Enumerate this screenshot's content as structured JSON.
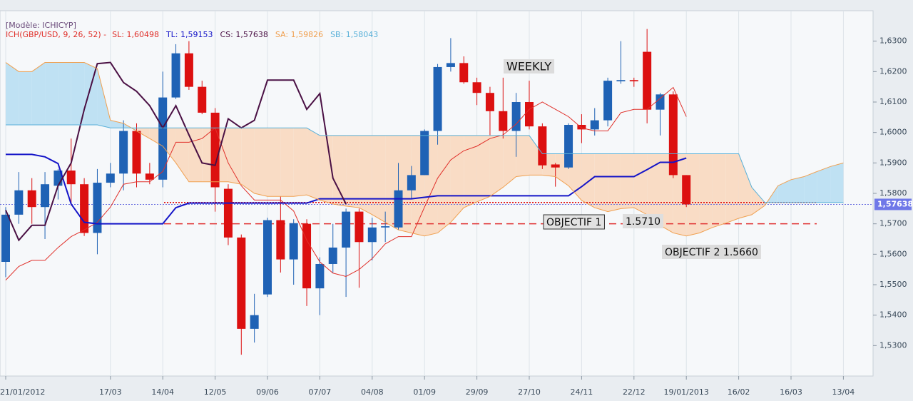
{
  "chart_data": {
    "type": "candlestick",
    "model": "[Modèle: ICHICYP]",
    "indicator": "ICH(GBP/USD, 9, 26, 52) -",
    "categories": [
      "21/01/2012",
      null,
      null,
      null,
      null,
      null,
      null,
      null,
      "17/03",
      null,
      null,
      null,
      "14/04",
      null,
      null,
      null,
      "12/05",
      null,
      null,
      null,
      "09/06",
      null,
      null,
      null,
      "07/07",
      null,
      null,
      null,
      "04/08",
      null,
      null,
      null,
      "01/09",
      null,
      null,
      null,
      "29/09",
      null,
      null,
      null,
      "27/10",
      null,
      null,
      null,
      "24/11",
      null,
      null,
      null,
      "22/12",
      null,
      null,
      null,
      "19/01/2013",
      null,
      null,
      null,
      "16/02",
      null,
      null,
      null,
      "16/03",
      null,
      null,
      null,
      "13/04"
    ],
    "open": [
      1.5575,
      1.573,
      1.581,
      1.5755,
      1.5825,
      1.5875,
      1.583,
      1.567,
      1.5835,
      1.5865,
      1.6005,
      1.5865,
      1.5845,
      1.6115,
      1.626,
      1.615,
      1.6065,
      1.5815,
      1.5655,
      1.5355,
      1.5468,
      1.5712,
      1.5583,
      1.57,
      1.5488,
      1.5568,
      1.5622,
      1.574,
      1.564,
      1.5688,
      1.5688,
      1.581,
      1.586,
      1.6005,
      1.6215,
      1.6228,
      1.6165,
      1.613,
      1.607,
      1.6005,
      1.61,
      1.602,
      1.5895,
      1.5885,
      1.6025,
      1.601,
      1.604,
      1.6168,
      1.6172,
      1.6265,
      1.6075,
      1.6125,
      1.586,
      null,
      null,
      null,
      null,
      null,
      null,
      null,
      null,
      null,
      null,
      null,
      null
    ],
    "high": [
      1.5755,
      1.587,
      1.585,
      1.587,
      1.588,
      1.598,
      1.585,
      1.588,
      1.59,
      1.604,
      1.603,
      1.59,
      1.62,
      1.629,
      1.63,
      1.617,
      1.608,
      1.583,
      1.5665,
      1.547,
      1.572,
      1.579,
      1.5715,
      1.5715,
      1.559,
      1.57,
      1.575,
      1.575,
      1.572,
      1.574,
      1.59,
      1.589,
      1.601,
      1.6225,
      1.631,
      1.625,
      1.618,
      1.615,
      1.618,
      1.613,
      1.617,
      1.603,
      1.59,
      1.603,
      1.606,
      1.608,
      1.618,
      1.63,
      1.618,
      1.634,
      1.613,
      1.6135,
      1.586,
      null,
      null,
      null,
      null,
      null,
      null,
      null,
      null,
      null,
      null,
      null,
      null
    ],
    "low": [
      1.5525,
      1.57,
      1.57,
      1.565,
      1.578,
      1.576,
      1.566,
      1.56,
      1.582,
      1.581,
      1.582,
      1.583,
      1.582,
      1.611,
      1.614,
      1.606,
      1.574,
      1.563,
      1.527,
      1.531,
      1.546,
      1.554,
      1.55,
      1.543,
      1.54,
      1.554,
      1.546,
      1.549,
      1.558,
      1.564,
      1.568,
      1.578,
      1.586,
      1.596,
      1.62,
      1.616,
      1.609,
      1.599,
      1.598,
      1.592,
      1.601,
      1.588,
      1.5822,
      1.588,
      1.5965,
      1.599,
      1.602,
      1.616,
      1.615,
      1.603,
      1.599,
      1.585,
      1.5755,
      null,
      null,
      null,
      null,
      null,
      null,
      null,
      null,
      null,
      null,
      null,
      null
    ],
    "close": [
      1.573,
      1.581,
      1.5755,
      1.583,
      1.5875,
      1.583,
      1.567,
      1.5835,
      1.5865,
      1.6005,
      1.5865,
      1.5845,
      1.6115,
      1.626,
      1.615,
      1.6065,
      1.582,
      1.5655,
      1.5355,
      1.54,
      1.5712,
      1.5583,
      1.5702,
      1.5488,
      1.5568,
      1.5622,
      1.574,
      1.564,
      1.5688,
      1.5692,
      1.581,
      1.586,
      1.6005,
      1.6215,
      1.6228,
      1.6165,
      1.613,
      1.607,
      1.6005,
      1.61,
      1.602,
      1.5892,
      1.5885,
      1.6025,
      1.601,
      1.604,
      1.617,
      1.6172,
      1.6168,
      1.6075,
      1.6125,
      1.586,
      1.57638,
      null,
      null,
      null,
      null,
      null,
      null,
      null,
      null,
      null,
      null,
      null,
      null
    ],
    "up_color": "#1f62b5",
    "down_color": "#dc1010",
    "series": [
      {
        "name": "SL: 1,60498",
        "color": "#e0302a",
        "width": 1,
        "values": [
          1.5515,
          1.556,
          1.558,
          1.558,
          1.5622,
          1.5658,
          1.568,
          1.5705,
          1.5755,
          1.583,
          1.5838,
          1.5838,
          1.5872,
          1.5968,
          1.5968,
          1.598,
          1.6015,
          1.59,
          1.5825,
          1.5778,
          1.5778,
          1.5778,
          1.5742,
          1.5646,
          1.5575,
          1.5538,
          1.5527,
          1.555,
          1.5586,
          1.5634,
          1.5658,
          1.5658,
          1.5755,
          1.585,
          1.591,
          1.594,
          1.5955,
          1.598,
          1.5992,
          1.6028,
          1.6076,
          1.61,
          1.6076,
          1.6052,
          1.6015,
          1.6005,
          1.6005,
          1.6065,
          1.6076,
          1.6076,
          1.6112,
          1.6148,
          1.6052,
          null,
          null,
          null,
          null,
          null,
          null,
          null,
          null,
          null,
          null,
          null,
          null
        ]
      },
      {
        "name": "TL: 1,59153",
        "color": "#1414c8",
        "width": 2,
        "values": [
          1.5928,
          1.5928,
          1.5928,
          1.592,
          1.5898,
          1.5765,
          1.5705,
          1.57,
          1.57,
          1.57,
          1.57,
          1.57,
          1.57,
          1.5753,
          1.5768,
          1.5768,
          1.5768,
          1.5768,
          1.5768,
          1.5768,
          1.5768,
          1.5768,
          1.5768,
          1.5768,
          1.5782,
          1.5782,
          1.5782,
          1.5782,
          1.5782,
          1.5782,
          1.5782,
          1.5782,
          1.5787,
          1.5792,
          1.5792,
          1.5792,
          1.5792,
          1.5792,
          1.5792,
          1.5792,
          1.5792,
          1.5792,
          1.5792,
          1.5792,
          1.5822,
          1.5855,
          1.5855,
          1.5855,
          1.5855,
          1.5878,
          1.5902,
          1.5902,
          1.5916,
          null,
          null,
          null,
          null,
          null,
          null,
          null,
          null,
          null,
          null,
          null,
          null
        ]
      },
      {
        "name": "CS: 1,57638",
        "color": "#4a1044",
        "width": 2,
        "values": [
          1.5745,
          1.5646,
          1.5695,
          1.5695,
          1.5825,
          1.59,
          1.6076,
          1.6226,
          1.623,
          1.6164,
          1.6135,
          1.6088,
          1.6015,
          1.6088,
          1.5992,
          1.59,
          1.5892,
          1.6045,
          1.6015,
          1.604,
          1.6172,
          1.6172,
          1.6172,
          1.6076,
          1.6128,
          1.585,
          1.5765,
          null,
          null,
          null,
          null,
          null,
          null,
          null,
          null,
          null,
          null,
          null,
          null,
          null,
          null,
          null,
          null,
          null,
          null,
          null,
          null,
          null,
          null,
          null,
          null,
          null,
          null,
          null,
          null,
          null,
          null,
          null,
          null,
          null,
          null,
          null,
          null,
          null,
          null
        ]
      },
      {
        "name": "SA: 1,59826",
        "color": "#f0a050",
        "width": 1,
        "values": [
          1.623,
          1.62,
          1.62,
          1.623,
          1.623,
          1.623,
          1.623,
          1.621,
          1.604,
          1.603,
          1.6005,
          1.598,
          1.5955,
          1.59,
          1.5838,
          1.5838,
          1.5838,
          1.5838,
          1.583,
          1.58,
          1.579,
          1.579,
          1.579,
          1.5795,
          1.5778,
          1.5765,
          1.5758,
          1.5753,
          1.573,
          1.5705,
          1.568,
          1.567,
          1.566,
          1.567,
          1.5705,
          1.5753,
          1.5772,
          1.579,
          1.582,
          1.5855,
          1.586,
          1.586,
          1.5855,
          1.5825,
          1.5777,
          1.5753,
          1.574,
          1.575,
          1.5753,
          1.573,
          1.5695,
          1.567,
          1.566,
          1.567,
          1.5688,
          1.5702,
          1.5718,
          1.573,
          1.576,
          1.5825,
          1.5845,
          1.5855,
          1.5872,
          1.5888,
          1.59
        ]
      },
      {
        "name": "SB: 1,58043",
        "color": "#58b0d8",
        "width": 1,
        "values": [
          1.6025,
          1.6025,
          1.6025,
          1.6025,
          1.6025,
          1.6025,
          1.6025,
          1.6025,
          1.6015,
          1.6015,
          1.6015,
          1.6015,
          1.6015,
          1.6015,
          1.6015,
          1.6015,
          1.6015,
          1.6015,
          1.6015,
          1.6015,
          1.6015,
          1.6015,
          1.6015,
          1.6015,
          1.599,
          1.599,
          1.599,
          1.599,
          1.599,
          1.599,
          1.599,
          1.599,
          1.599,
          1.599,
          1.599,
          1.599,
          1.599,
          1.599,
          1.599,
          1.599,
          1.599,
          1.593,
          1.593,
          1.593,
          1.593,
          1.593,
          1.593,
          1.593,
          1.593,
          1.593,
          1.593,
          1.593,
          1.593,
          1.593,
          1.593,
          1.593,
          1.593,
          1.582,
          1.577,
          1.577,
          1.577,
          1.577,
          1.577,
          1.577,
          1.577
        ]
      }
    ],
    "cloud_up_color": "#bfe1f3",
    "cloud_down_color": "#f9dcc5",
    "ylim": [
      1.52,
      1.64
    ],
    "yticks": [
      {
        "value": 1.53,
        "label": "1,5300"
      },
      {
        "value": 1.54,
        "label": "1,5400"
      },
      {
        "value": 1.55,
        "label": "1,5500"
      },
      {
        "value": 1.56,
        "label": "1,5600"
      },
      {
        "value": 1.57,
        "label": "1,5700"
      },
      {
        "value": 1.58,
        "label": "1,5800"
      },
      {
        "value": 1.59,
        "label": "1,5900"
      },
      {
        "value": 1.6,
        "label": "1,6000"
      },
      {
        "value": 1.61,
        "label": "1,6100"
      },
      {
        "value": 1.62,
        "label": "1,6200"
      },
      {
        "value": 1.63,
        "label": "1,6300"
      }
    ],
    "grid": true,
    "last_price": {
      "value": 1.57638,
      "label": "1,57638"
    },
    "hlines": [
      {
        "value": 1.577,
        "color": "#e00000",
        "dash": "2 2"
      },
      {
        "value": 1.57,
        "color": "#e03030",
        "dash": "10 6"
      }
    ],
    "annotations": [
      "WEEKLY",
      "OBJECTIF 1",
      "1.5710",
      "OBJECTIF 2 1.5660"
    ]
  }
}
